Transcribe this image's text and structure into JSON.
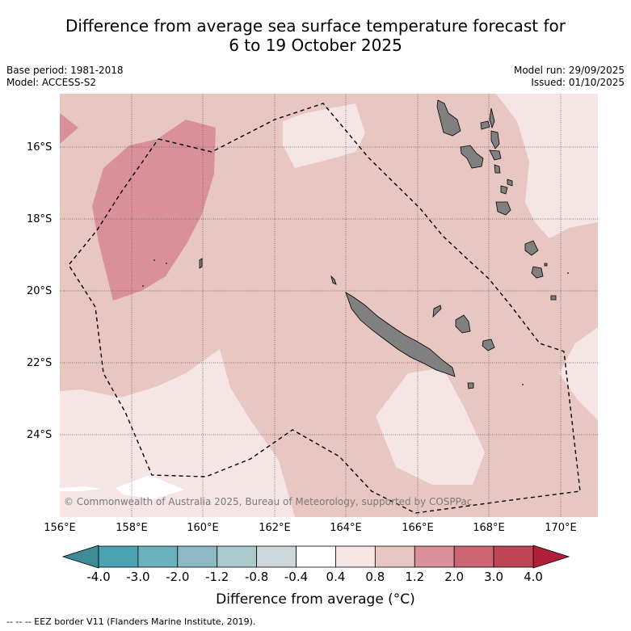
{
  "title_line1": "Difference from average sea surface temperature forecast for",
  "title_line2": "6 to 19 October 2025",
  "meta_left": {
    "base_period": "Base period: 1981-2018",
    "model": "Model: ACCESS-S2"
  },
  "meta_right": {
    "model_run": "Model run: 29/09/2025",
    "issued": "Issued: 01/10/2025"
  },
  "y_ticks": [
    "16°S",
    "18°S",
    "20°S",
    "22°S",
    "24°S"
  ],
  "x_ticks": [
    "156°E",
    "158°E",
    "160°E",
    "162°E",
    "164°E",
    "166°E",
    "168°E",
    "170°E"
  ],
  "copyright": "© Commonwealth of Australia 2025, Bureau of Meteorology, supported by COSPPac",
  "colorbar": {
    "labels": [
      "-4.0",
      "-3.0",
      "-2.0",
      "-1.2",
      "-0.8",
      "-0.4",
      "0.4",
      "0.8",
      "1.2",
      "2.0",
      "3.0",
      "4.0"
    ],
    "colors": [
      "#4aa2b3",
      "#6bb0bd",
      "#8db9c4",
      "#a9c9cc",
      "#cdd8da",
      "#ffffff",
      "#f5e6e5",
      "#e8c6c2",
      "#d9909a",
      "#cc6672",
      "#bf4555"
    ],
    "under_color": "#3e8a97",
    "over_color": "#b01e3a",
    "title": "Difference from average (°C)"
  },
  "colors": {
    "band_04_08": "#f5e6e5",
    "band_08_12": "#e8c6c2",
    "band_12_20": "#d9909a",
    "land": "#808080"
  },
  "footer": "-- -- -- EEZ border V11 (Flanders Marine Institute, 2019)."
}
